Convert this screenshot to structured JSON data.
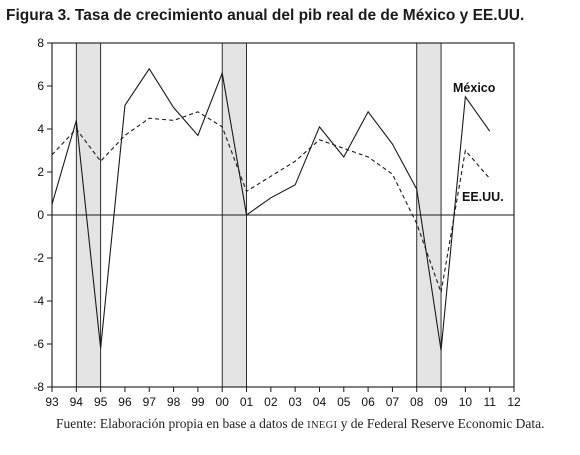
{
  "chart_data": {
    "type": "line",
    "title": "Figura 3. Tasa de crecimiento anual del pib real de de México y EE.UU.",
    "x": [
      "93",
      "94",
      "95",
      "96",
      "97",
      "98",
      "99",
      "00",
      "01",
      "02",
      "03",
      "04",
      "05",
      "06",
      "07",
      "08",
      "09",
      "10",
      "11"
    ],
    "x_tick_labels": [
      "93",
      "94",
      "95",
      "96",
      "97",
      "98",
      "99",
      "00",
      "01",
      "02",
      "03",
      "04",
      "05",
      "06",
      "07",
      "08",
      "09",
      "10",
      "11",
      "12"
    ],
    "y_tick_labels": [
      "8",
      "6",
      "4",
      "2",
      "0",
      "-2",
      "-4",
      "-6",
      "-8"
    ],
    "ylim": [
      -8,
      8
    ],
    "series": [
      {
        "name": "México",
        "style": "solid",
        "color": "#1a1a1a",
        "values": [
          0.5,
          4.4,
          -6.2,
          5.1,
          6.8,
          5.0,
          3.7,
          6.6,
          0.0,
          0.8,
          1.4,
          4.1,
          2.7,
          4.8,
          3.3,
          1.2,
          -6.3,
          5.5,
          3.9
        ]
      },
      {
        "name": "EE.UU.",
        "style": "dashed",
        "color": "#1a1a1a",
        "values": [
          2.8,
          4.0,
          2.5,
          3.7,
          4.5,
          4.4,
          4.8,
          4.1,
          1.1,
          1.8,
          2.5,
          3.5,
          3.1,
          2.7,
          1.9,
          -0.4,
          -3.6,
          3.0,
          1.7
        ]
      }
    ],
    "shaded_periods": [
      [
        "94",
        "95"
      ],
      [
        "00",
        "01"
      ],
      [
        "08",
        "09"
      ]
    ],
    "zero_line": true,
    "grid": false
  },
  "source_note": {
    "prefix": "Fuente: Elaboración propia en base a datos de ",
    "smallcaps": "INEGI",
    "suffix": " y de Federal Reserve Economic Data."
  }
}
